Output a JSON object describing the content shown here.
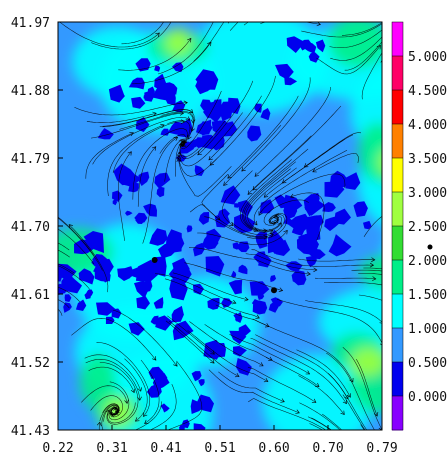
{
  "chart_data": {
    "type": "heatmap",
    "title": "",
    "xlabel": "",
    "ylabel": "",
    "xlim": [
      0.22,
      0.79
    ],
    "ylim": [
      41.43,
      41.97
    ],
    "x_ticks": [
      "0.22",
      "0.31",
      "0.41",
      "0.51",
      "0.60",
      "0.70",
      "0.79"
    ],
    "y_ticks": [
      "41.97",
      "41.88",
      "41.79",
      "41.70",
      "41.61",
      "41.52",
      "41.43"
    ],
    "colorbar": {
      "labels": [
        "5.000",
        "4.500",
        "4.000",
        "3.500",
        "3.000",
        "2.500",
        "2.000",
        "1.500",
        "1.000",
        "0.500",
        "0.000"
      ],
      "colors": [
        "#ff00ff",
        "#ff0066",
        "#ff0000",
        "#ff8000",
        "#ffff00",
        "#a0ff40",
        "#33dd33",
        "#00ee88",
        "#00ffff",
        "#3399ff",
        "#0000ee",
        "#8800ff"
      ]
    },
    "points": [
      {
        "x": 0.39,
        "y": 41.655
      },
      {
        "x": 0.6,
        "y": 41.615
      }
    ],
    "streamlines": true
  }
}
